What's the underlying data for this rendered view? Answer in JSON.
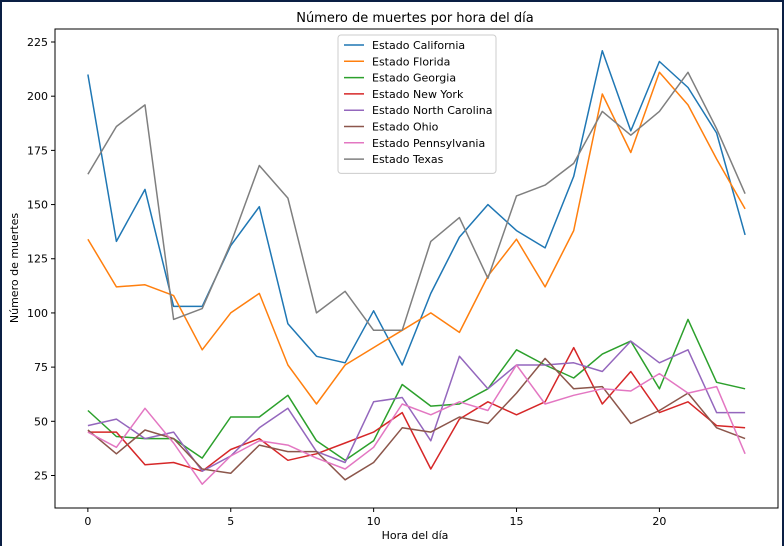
{
  "chart_data": {
    "type": "line",
    "title": "Número de muertes por hora del día",
    "xlabel": "Hora del día",
    "ylabel": "Número de muertes",
    "xlim": [
      -1.15,
      24.15
    ],
    "ylim": [
      10,
      231
    ],
    "xticks": [
      0,
      5,
      10,
      15,
      20
    ],
    "yticks": [
      25,
      50,
      75,
      100,
      125,
      150,
      175,
      200,
      225
    ],
    "grid": false,
    "legend_position": "top-center",
    "x": [
      0,
      1,
      2,
      3,
      4,
      5,
      6,
      7,
      8,
      9,
      10,
      11,
      12,
      13,
      14,
      15,
      16,
      17,
      18,
      19,
      20,
      21,
      22,
      23
    ],
    "series": [
      {
        "name": "Estado California",
        "color": "#1f77b4",
        "values": [
          210,
          133,
          157,
          103,
          103,
          131,
          149,
          95,
          80,
          77,
          101,
          76,
          109,
          135,
          150,
          138,
          130,
          163,
          221,
          184,
          216,
          204,
          183,
          136
        ]
      },
      {
        "name": "Estado Florida",
        "color": "#ff7f0e",
        "values": [
          134,
          112,
          113,
          108,
          83,
          100,
          109,
          76,
          58,
          76,
          84,
          92,
          100,
          91,
          117,
          134,
          112,
          138,
          201,
          174,
          211,
          196,
          171,
          148
        ]
      },
      {
        "name": "Estado Georgia",
        "color": "#2ca02c",
        "values": [
          55,
          43,
          42,
          42,
          33,
          52,
          52,
          62,
          41,
          32,
          41,
          67,
          57,
          58,
          65,
          83,
          76,
          70,
          81,
          87,
          65,
          97,
          68,
          65
        ]
      },
      {
        "name": "Estado New York",
        "color": "#d62728",
        "values": [
          45,
          45,
          30,
          31,
          27,
          37,
          42,
          32,
          35,
          40,
          45,
          54,
          28,
          51,
          59,
          53,
          59,
          84,
          58,
          73,
          54,
          59,
          48,
          47
        ]
      },
      {
        "name": "Estado North Carolina",
        "color": "#9467bd",
        "values": [
          48,
          51,
          42,
          45,
          27,
          34,
          47,
          56,
          36,
          31,
          59,
          61,
          41,
          80,
          65,
          76,
          76,
          77,
          73,
          87,
          77,
          83,
          54,
          54
        ]
      },
      {
        "name": "Estado Ohio",
        "color": "#8c564b",
        "values": [
          46,
          35,
          46,
          42,
          28,
          26,
          39,
          36,
          36,
          23,
          31,
          47,
          45,
          52,
          49,
          63,
          79,
          65,
          66,
          49,
          55,
          63,
          47,
          42
        ]
      },
      {
        "name": "Estado Pennsylvania",
        "color": "#e377c2",
        "values": [
          45,
          38,
          56,
          40,
          21,
          34,
          41,
          39,
          33,
          28,
          38,
          58,
          53,
          59,
          55,
          76,
          58,
          62,
          65,
          64,
          72,
          63,
          66,
          35
        ]
      },
      {
        "name": "Estado Texas",
        "color": "#7f7f7f",
        "values": [
          164,
          186,
          196,
          97,
          102,
          132,
          168,
          153,
          100,
          110,
          92,
          92,
          133,
          144,
          116,
          154,
          159,
          169,
          193,
          182,
          193,
          211,
          185,
          155
        ]
      }
    ]
  }
}
